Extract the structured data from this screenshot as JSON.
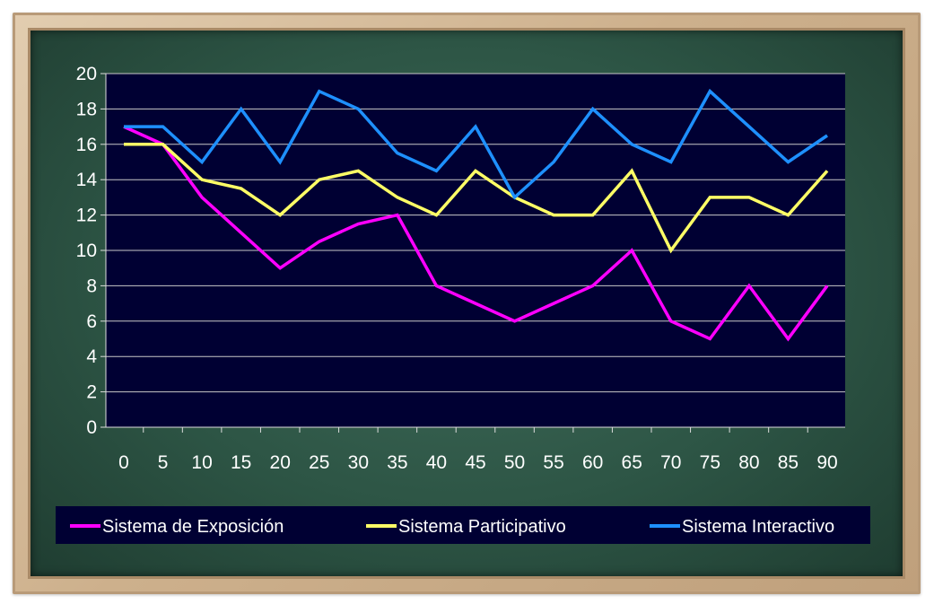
{
  "chart_data": {
    "type": "line",
    "title": "",
    "xlabel": "",
    "ylabel": "",
    "x": [
      0,
      5,
      10,
      15,
      20,
      25,
      30,
      35,
      40,
      45,
      50,
      55,
      60,
      65,
      70,
      75,
      80,
      85,
      90
    ],
    "x_tick_labels": [
      "0",
      "5",
      "10",
      "15",
      "20",
      "25",
      "30",
      "35",
      "40",
      "45",
      "50",
      "55",
      "60",
      "65",
      "70",
      "75",
      "80",
      "85",
      "90"
    ],
    "ylim": [
      0,
      20
    ],
    "y_ticks": [
      0,
      2,
      4,
      6,
      8,
      10,
      12,
      14,
      16,
      18,
      20
    ],
    "y_tick_labels": [
      "0",
      "2",
      "4",
      "6",
      "8",
      "10",
      "12",
      "14",
      "16",
      "18",
      "20"
    ],
    "grid": true,
    "legend_position": "bottom",
    "series": [
      {
        "name": "Sistema de Exposición",
        "color": "#ff00ff",
        "values": [
          17,
          16,
          13,
          11,
          9,
          10.5,
          11.5,
          12,
          8,
          7,
          6,
          7,
          8,
          10,
          6,
          5,
          8,
          5,
          8
        ]
      },
      {
        "name": "Sistema Participativo",
        "color": "#ffff66",
        "values": [
          16,
          16,
          14,
          13.5,
          12,
          14,
          14.5,
          13,
          12,
          14.5,
          13,
          12,
          12,
          14.5,
          10,
          13,
          13,
          12,
          14.5
        ]
      },
      {
        "name": "Sistema Interactivo",
        "color": "#1e90ff",
        "values": [
          17,
          17,
          15,
          18,
          15,
          19,
          18,
          15.5,
          14.5,
          17,
          13,
          15,
          18,
          16,
          15,
          19,
          17,
          15,
          16.5
        ]
      }
    ]
  },
  "colors": {
    "plot_background": "#000033",
    "gridline": "#c8c8c8",
    "axis": "#dddddd",
    "legend_background": "#000033"
  }
}
